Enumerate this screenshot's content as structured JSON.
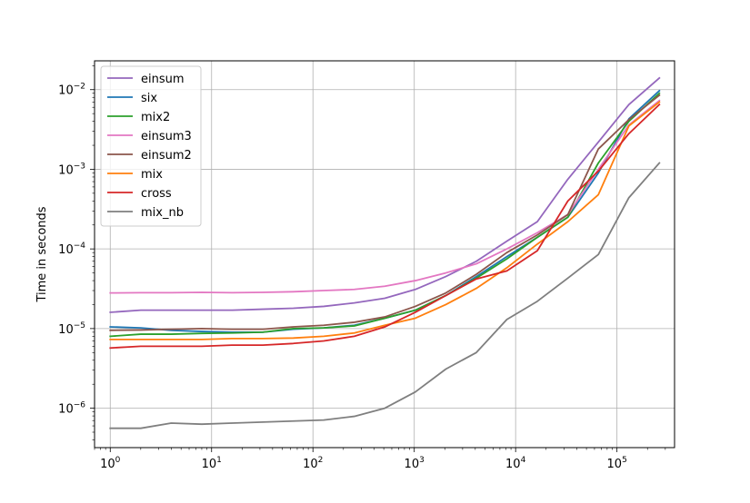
{
  "chart_data": {
    "type": "line",
    "title": "",
    "xlabel": "",
    "ylabel": "Time in seconds",
    "xscale": "log",
    "yscale": "log",
    "xlim": [
      0.7,
      370000
    ],
    "ylim": [
      3.2e-07,
      0.023
    ],
    "grid": true,
    "legend_position": "top-left",
    "x_ticks": [
      {
        "value": 1,
        "base": "10",
        "exp": "0"
      },
      {
        "value": 10,
        "base": "10",
        "exp": "1"
      },
      {
        "value": 100,
        "base": "10",
        "exp": "2"
      },
      {
        "value": 1000,
        "base": "10",
        "exp": "3"
      },
      {
        "value": 10000,
        "base": "10",
        "exp": "4"
      },
      {
        "value": 100000,
        "base": "10",
        "exp": "5"
      }
    ],
    "y_ticks": [
      {
        "value": 1e-06,
        "base": "10",
        "exp": "−6"
      },
      {
        "value": 1e-05,
        "base": "10",
        "exp": "−5"
      },
      {
        "value": 0.0001,
        "base": "10",
        "exp": "−4"
      },
      {
        "value": 0.001,
        "base": "10",
        "exp": "−3"
      },
      {
        "value": 0.01,
        "base": "10",
        "exp": "−2"
      }
    ],
    "x": [
      1,
      2,
      4,
      8,
      16,
      32,
      64,
      128,
      256,
      512,
      1024,
      2048,
      4096,
      8192,
      16384,
      32768,
      65536,
      131072,
      262144
    ],
    "series": [
      {
        "name": "einsum",
        "color": "#9467bd",
        "values": [
          1.6e-05,
          1.7e-05,
          1.7e-05,
          1.7e-05,
          1.7e-05,
          1.75e-05,
          1.8e-05,
          1.9e-05,
          2.1e-05,
          2.4e-05,
          3.1e-05,
          4.5e-05,
          7e-05,
          0.000125,
          0.00022,
          0.00075,
          0.0022,
          0.0065,
          0.014
        ]
      },
      {
        "name": "six",
        "color": "#1f77b4",
        "values": [
          1.05e-05,
          1.02e-05,
          9.5e-06,
          9.2e-06,
          9e-06,
          9e-06,
          9.8e-06,
          1.02e-05,
          1.1e-05,
          1.35e-05,
          1.7e-05,
          2.6e-05,
          4.5e-05,
          8e-05,
          0.00014,
          0.00025,
          0.0009,
          0.0043,
          0.0097
        ]
      },
      {
        "name": "mix2",
        "color": "#2ca02c",
        "values": [
          8e-06,
          8.5e-06,
          8.5e-06,
          8.7e-06,
          8.8e-06,
          9e-06,
          1e-05,
          1.02e-05,
          1.08e-05,
          1.35e-05,
          1.7e-05,
          2.6e-05,
          4.3e-05,
          7.5e-05,
          0.00014,
          0.00025,
          0.0012,
          0.004,
          0.009
        ]
      },
      {
        "name": "einsum3",
        "color": "#e377c2",
        "values": [
          2.8e-05,
          2.82e-05,
          2.82e-05,
          2.85e-05,
          2.82e-05,
          2.85e-05,
          2.9e-05,
          3e-05,
          3.1e-05,
          3.4e-05,
          4e-05,
          5e-05,
          6.5e-05,
          0.0001,
          0.00016,
          0.00027,
          0.001,
          0.0036,
          0.0073
        ]
      },
      {
        "name": "einsum2",
        "color": "#8c564b",
        "values": [
          9.5e-06,
          9.6e-06,
          9.8e-06,
          1e-05,
          9.8e-06,
          9.8e-06,
          1.05e-05,
          1.1e-05,
          1.2e-05,
          1.4e-05,
          1.9e-05,
          2.8e-05,
          4.8e-05,
          9e-05,
          0.00015,
          0.00027,
          0.0018,
          0.0042,
          0.0085
        ]
      },
      {
        "name": "mix",
        "color": "#ff7f0e",
        "values": [
          7.3e-06,
          7.3e-06,
          7.3e-06,
          7.3e-06,
          7.5e-06,
          7.5e-06,
          7.6e-06,
          8e-06,
          8.8e-06,
          1.1e-05,
          1.35e-05,
          2e-05,
          3.2e-05,
          5.8e-05,
          0.000115,
          0.00022,
          0.00048,
          0.0035,
          0.007
        ]
      },
      {
        "name": "cross",
        "color": "#d62728",
        "values": [
          5.7e-06,
          6e-06,
          6e-06,
          6e-06,
          6.2e-06,
          6.2e-06,
          6.5e-06,
          7e-06,
          8e-06,
          1.05e-05,
          1.6e-05,
          2.6e-05,
          4.2e-05,
          5.3e-05,
          9.5e-05,
          0.0004,
          0.00095,
          0.0028,
          0.0065
        ]
      },
      {
        "name": "mix_nb",
        "color": "#7f7f7f",
        "values": [
          5.6e-07,
          5.6e-07,
          6.5e-07,
          6.3e-07,
          6.5e-07,
          6.7e-07,
          6.9e-07,
          7.1e-07,
          7.9e-07,
          1e-06,
          1.6e-06,
          3.1e-06,
          5e-06,
          1.3e-05,
          2.2e-05,
          4.3e-05,
          8.5e-05,
          0.00044,
          0.0012
        ]
      }
    ]
  }
}
